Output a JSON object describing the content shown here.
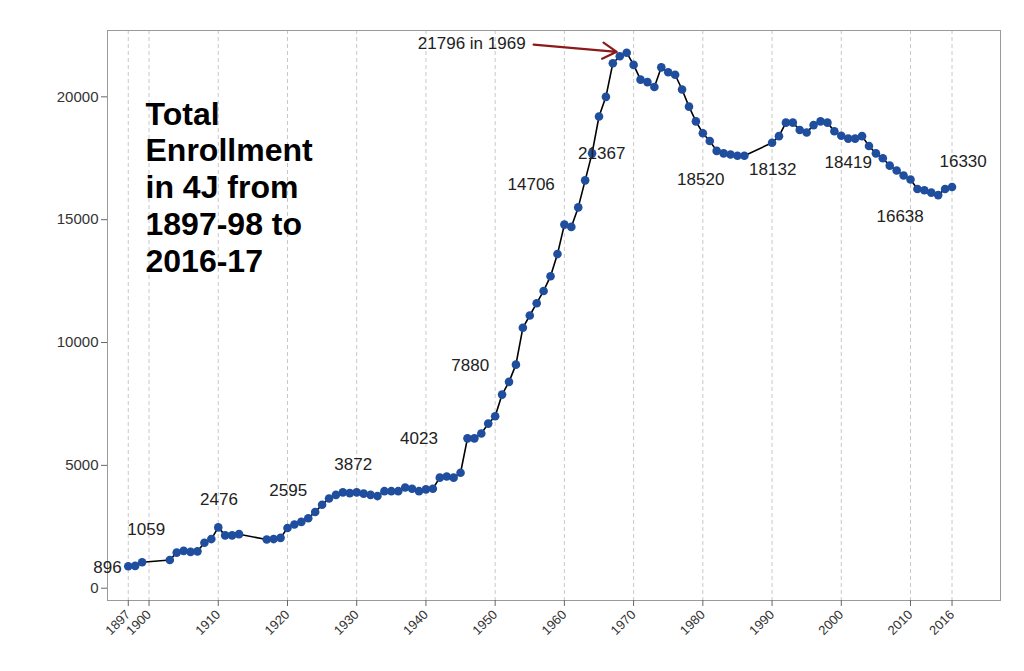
{
  "chart_data": {
    "type": "line",
    "title": "Total Enrollment in 4J from 1897-98 to 2016-17",
    "x": [
      1897,
      1898,
      1899,
      1903,
      1904,
      1905,
      1906,
      1907,
      1908,
      1909,
      1910,
      1911,
      1912,
      1913,
      1917,
      1918,
      1919,
      1920,
      1921,
      1922,
      1923,
      1924,
      1925,
      1926,
      1927,
      1928,
      1929,
      1930,
      1931,
      1932,
      1933,
      1934,
      1935,
      1936,
      1937,
      1938,
      1939,
      1940,
      1941,
      1942,
      1943,
      1944,
      1945,
      1946,
      1947,
      1948,
      1949,
      1950,
      1951,
      1952,
      1953,
      1954,
      1955,
      1956,
      1957,
      1958,
      1959,
      1960,
      1961,
      1962,
      1963,
      1964,
      1965,
      1966,
      1967,
      1968,
      1969,
      1970,
      1971,
      1972,
      1973,
      1974,
      1975,
      1976,
      1977,
      1978,
      1979,
      1980,
      1981,
      1982,
      1983,
      1984,
      1985,
      1986,
      1990,
      1991,
      1992,
      1993,
      1994,
      1995,
      1996,
      1997,
      1998,
      1999,
      2000,
      2001,
      2002,
      2003,
      2004,
      2005,
      2006,
      2007,
      2008,
      2009,
      2010,
      2011,
      2012,
      2013,
      2014,
      2015,
      2016
    ],
    "values": [
      896,
      910,
      1059,
      1150,
      1450,
      1520,
      1480,
      1500,
      1850,
      2000,
      2476,
      2150,
      2150,
      2200,
      1980,
      2000,
      2050,
      2450,
      2595,
      2700,
      2850,
      3100,
      3400,
      3650,
      3800,
      3900,
      3872,
      3900,
      3850,
      3800,
      3750,
      3950,
      3950,
      3950,
      4100,
      4050,
      3950,
      4023,
      4050,
      4500,
      4550,
      4500,
      4700,
      6100,
      6100,
      6300,
      6700,
      7000,
      7880,
      8400,
      9100,
      10600,
      11100,
      11600,
      12100,
      12700,
      13600,
      14800,
      14706,
      15500,
      16600,
      17700,
      19200,
      20000,
      21367,
      21650,
      21796,
      21300,
      20700,
      20600,
      20400,
      21200,
      21000,
      20900,
      20300,
      19600,
      19000,
      18520,
      18200,
      17800,
      17700,
      17650,
      17600,
      17600,
      18132,
      18400,
      18950,
      18950,
      18650,
      18550,
      18850,
      19000,
      18950,
      18600,
      18419,
      18300,
      18300,
      18400,
      18000,
      17700,
      17500,
      17200,
      17000,
      16800,
      16638,
      16250,
      16200,
      16100,
      16000,
      16250,
      16330
    ],
    "color": "#1f4e9e",
    "marker": "circle",
    "line_style": "solid",
    "xlim": [
      1894,
      2023
    ],
    "xticks": [
      1897,
      1900,
      1910,
      1920,
      1930,
      1940,
      1950,
      1960,
      1970,
      1980,
      1990,
      2000,
      2010,
      2016
    ],
    "ylim": [
      -500,
      22700
    ],
    "yticks": [
      0,
      5000,
      10000,
      15000,
      20000
    ],
    "grid": true,
    "annotations": [
      {
        "text": "896",
        "x": 1894.0,
        "y": 854
      },
      {
        "text": "1059",
        "x": 1899.6,
        "y": 2400
      },
      {
        "text": "2476",
        "x": 1910.1,
        "y": 3620
      },
      {
        "text": "2595",
        "x": 1920.1,
        "y": 3980
      },
      {
        "text": "3872",
        "x": 1929.5,
        "y": 5040
      },
      {
        "text": "4023",
        "x": 1939.0,
        "y": 6100
      },
      {
        "text": "7880",
        "x": 1946.4,
        "y": 9065
      },
      {
        "text": "14706",
        "x": 1955.2,
        "y": 16420
      },
      {
        "text": "21367",
        "x": 1965.4,
        "y": 17680
      },
      {
        "text": "18520",
        "x": 1979.7,
        "y": 16630
      },
      {
        "text": "18132",
        "x": 1990.1,
        "y": 17030
      },
      {
        "text": "18419",
        "x": 2001.0,
        "y": 17320
      },
      {
        "text": "16638",
        "x": 2008.5,
        "y": 15120
      },
      {
        "text": "16330",
        "x": 2017.6,
        "y": 17360
      },
      {
        "text": "21796 in 1969",
        "x": 1954.4,
        "y": 22150,
        "arrow_to": {
          "x": 1969,
          "y": 21796
        }
      }
    ]
  }
}
